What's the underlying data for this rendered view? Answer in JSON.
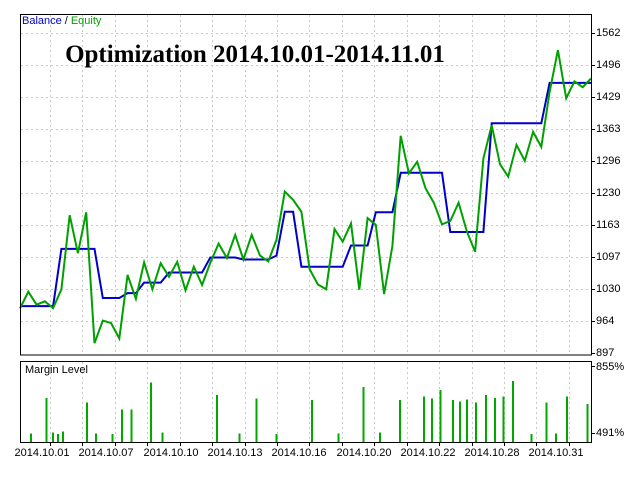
{
  "title": "Optimization 2014.10.01-2014.11.01",
  "legend": {
    "balance_label": "Balance",
    "separator": "/",
    "equity_label": "Equity"
  },
  "margin_panel": {
    "label": "Margin Level",
    "top_label": "855%",
    "bottom_label": "491%"
  },
  "colors": {
    "balance": "#0000C8",
    "equity": "#00A000",
    "margin_bars": "#00A800",
    "grid": "#C9C9C9",
    "border": "#000000",
    "background": "#FFFFFF",
    "text": "#000000"
  },
  "chart_data": {
    "type": "line",
    "title": "Optimization 2014.10.01-2014.11.01",
    "grid": "dashed",
    "legend_position": "top-left",
    "x_tick_labels": [
      "2014.10.01",
      "2014.10.07",
      "2014.10.10",
      "2014.10.13",
      "2014.10.16",
      "2014.10.20",
      "2014.10.22",
      "2014.10.28",
      "2014.10.31"
    ],
    "main_y_ticks": [
      1562,
      1496,
      1429,
      1363,
      1296,
      1230,
      1163,
      1097,
      1030,
      964,
      897
    ],
    "main_y_range": [
      897,
      1562
    ],
    "margin_y_ticks": [
      "855%",
      "491%"
    ],
    "series": [
      {
        "name": "Balance",
        "color": "#0000C8",
        "values": [
          995,
          995,
          995,
          995,
          995,
          1114,
          1114,
          1114,
          1114,
          1114,
          1012,
          1012,
          1012,
          1022,
          1022,
          1044,
          1044,
          1044,
          1065,
          1065,
          1065,
          1065,
          1065,
          1096,
          1096,
          1096,
          1096,
          1092,
          1092,
          1092,
          1092,
          1100,
          1191,
          1191,
          1077,
          1077,
          1077,
          1077,
          1077,
          1077,
          1121,
          1121,
          1121,
          1190,
          1190,
          1190,
          1272,
          1272,
          1272,
          1272,
          1272,
          1272,
          1149,
          1149,
          1149,
          1149,
          1149,
          1375,
          1375,
          1375,
          1375,
          1375,
          1375,
          1375,
          1459,
          1459,
          1459,
          1459,
          1459,
          1459
        ]
      },
      {
        "name": "Equity",
        "color": "#00A000",
        "values": [
          990,
          1025,
          998,
          1005,
          991,
          1030,
          1184,
          1105,
          1190,
          918,
          965,
          960,
          928,
          1060,
          1010,
          1086,
          1030,
          1084,
          1056,
          1087,
          1028,
          1077,
          1039,
          1085,
          1125,
          1095,
          1143,
          1092,
          1143,
          1100,
          1088,
          1133,
          1233,
          1216,
          1191,
          1072,
          1040,
          1030,
          1155,
          1129,
          1167,
          1029,
          1178,
          1164,
          1020,
          1120,
          1349,
          1271,
          1295,
          1240,
          1210,
          1165,
          1172,
          1210,
          1150,
          1108,
          1302,
          1371,
          1290,
          1264,
          1330,
          1297,
          1357,
          1326,
          1440,
          1527,
          1427,
          1462,
          1450,
          1468
        ]
      }
    ],
    "margin_level_bars": {
      "name": "Margin Level",
      "color": "#00A800",
      "points": [
        [
          1.3,
          0.12
        ],
        [
          3.2,
          0.58
        ],
        [
          4.0,
          0.13
        ],
        [
          4.6,
          0.11
        ],
        [
          5.2,
          0.14
        ],
        [
          8.1,
          0.52
        ],
        [
          9.2,
          0.12
        ],
        [
          11.2,
          0.11
        ],
        [
          12.3,
          0.43
        ],
        [
          13.5,
          0.43
        ],
        [
          15.8,
          0.78
        ],
        [
          17.2,
          0.13
        ],
        [
          23.8,
          0.62
        ],
        [
          26.5,
          0.12
        ],
        [
          28.6,
          0.57
        ],
        [
          31.0,
          0.11
        ],
        [
          35.3,
          0.55
        ],
        [
          38.5,
          0.12
        ],
        [
          41.5,
          0.72
        ],
        [
          43.5,
          0.13
        ],
        [
          45.9,
          0.55
        ],
        [
          48.8,
          0.6
        ],
        [
          49.8,
          0.57
        ],
        [
          50.8,
          0.68
        ],
        [
          52.3,
          0.55
        ],
        [
          53.2,
          0.53
        ],
        [
          54.0,
          0.56
        ],
        [
          55.1,
          0.52
        ],
        [
          56.3,
          0.62
        ],
        [
          57.4,
          0.58
        ],
        [
          58.4,
          0.6
        ],
        [
          59.6,
          0.8
        ],
        [
          61.8,
          0.11
        ],
        [
          63.6,
          0.52
        ],
        [
          64.8,
          0.12
        ],
        [
          66.1,
          0.6
        ],
        [
          68.6,
          0.5
        ]
      ]
    }
  }
}
